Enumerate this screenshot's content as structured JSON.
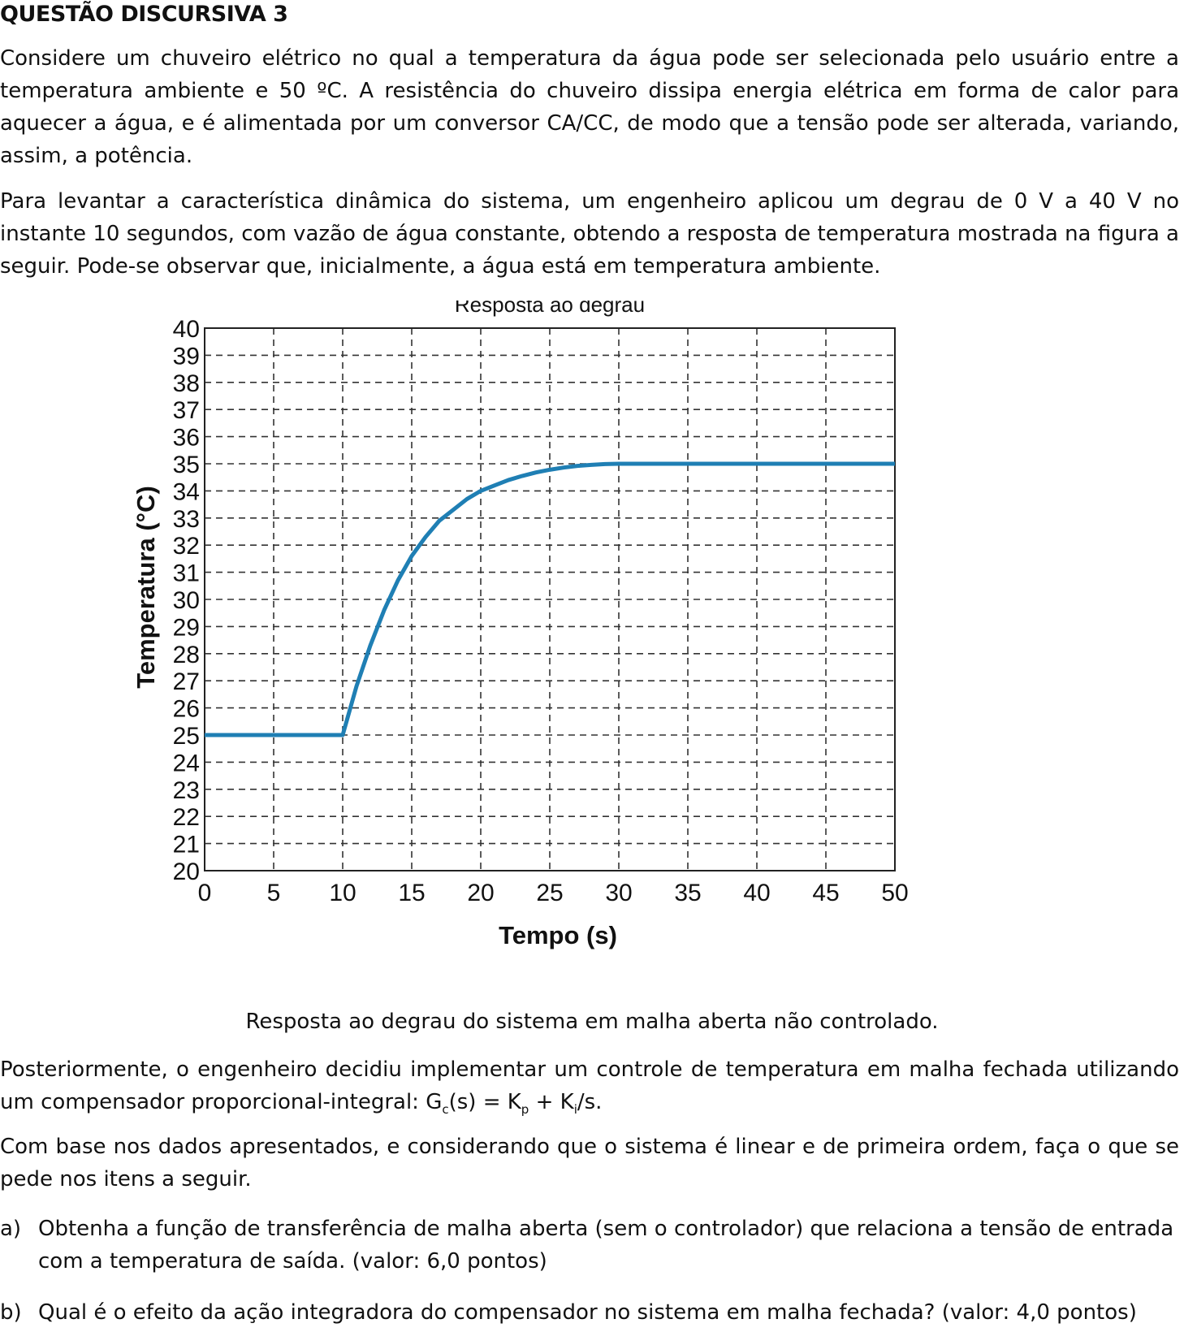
{
  "question": {
    "heading": "QUESTÃO DISCURSIVA 3",
    "paragraph1": "Considere um chuveiro elétrico no qual a temperatura da água pode ser selecionada pelo usuário entre a temperatura ambiente e 50 ºC. A resistência do chuveiro dissipa energia elétrica em forma de calor para aquecer a água, e é alimentada por um conversor CA/CC, de modo que a tensão pode ser alterada, variando, assim, a potência.",
    "paragraph2": "Para levantar a característica dinâmica do sistema, um engenheiro aplicou um degrau de 0 V a 40 V no instante 10 segundos, com vazão de água constante, obtendo a resposta de temperatura mostrada na figura a seguir. Pode-se observar que, inicialmente, a água está em temperatura ambiente.",
    "figure_caption": "Resposta ao degrau do sistema em malha aberta não controlado.",
    "paragraph3_text": "Posteriormente, o engenheiro decidiu implementar um controle de temperatura em malha fechada utilizando um compensador proporcional-integral: G",
    "paragraph3_sub_c": "c",
    "paragraph3_mid1": "(s) = K",
    "paragraph3_sub_p": "p",
    "paragraph3_mid2": " + K",
    "paragraph3_sub_i": "i",
    "paragraph3_end": "/s.",
    "paragraph4": "Com base nos dados apresentados, e considerando que o sistema é linear e de primeira ordem, faça o que se pede nos itens a seguir.",
    "item_a_label": "a)",
    "item_a_text": "Obtenha a função de transferência de malha aberta (sem o controlador) que relaciona a tensão de entrada com a temperatura de saída. (valor: 6,0 pontos)",
    "item_b_label": "b)",
    "item_b_text": "Qual é o efeito da ação integradora do compensador no sistema em malha fechada? (valor: 4,0 pontos)"
  },
  "chart_data": {
    "type": "line",
    "title": "Resposta ao degrau",
    "xlabel": "Tempo (s)",
    "ylabel": "Temperatura (°C)",
    "xlim": [
      0,
      50
    ],
    "ylim": [
      20,
      40
    ],
    "xticks": [
      0,
      5,
      10,
      15,
      20,
      25,
      30,
      35,
      40,
      45,
      50
    ],
    "yticks": [
      20,
      21,
      22,
      23,
      24,
      25,
      26,
      27,
      28,
      29,
      30,
      31,
      32,
      33,
      34,
      35,
      36,
      37,
      38,
      39,
      40
    ],
    "grid": true,
    "line_color": "#1f7fb4",
    "series": [
      {
        "x": [
          0,
          10,
          11,
          12,
          13,
          14,
          15,
          16,
          17,
          18,
          19,
          20,
          21,
          22,
          23,
          24,
          25,
          26,
          27,
          28,
          29,
          30,
          35,
          40,
          45,
          50
        ],
        "y": [
          25,
          25,
          26.8,
          28.3,
          29.6,
          30.7,
          31.6,
          32.3,
          32.9,
          33.3,
          33.7,
          34.0,
          34.2,
          34.4,
          34.55,
          34.68,
          34.78,
          34.86,
          34.92,
          34.96,
          34.99,
          35,
          35,
          35,
          35,
          35
        ]
      }
    ]
  }
}
